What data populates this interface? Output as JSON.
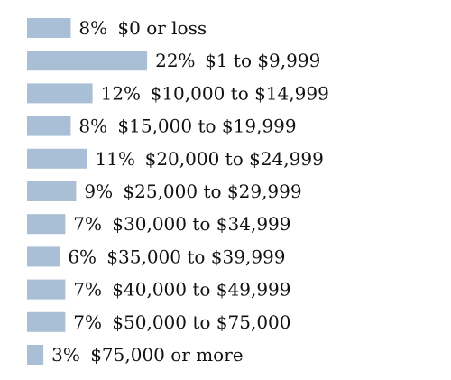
{
  "chart_data": {
    "type": "bar",
    "orientation": "horizontal",
    "bar_color": "#a8bfd6",
    "text_color": "#111111",
    "grid": false,
    "legend": "none",
    "xlim": [
      0,
      22
    ],
    "rows": [
      {
        "value": 8,
        "pct_label": "8%",
        "range_label": "$0 or loss"
      },
      {
        "value": 22,
        "pct_label": "22%",
        "range_label": "$1 to $9,999"
      },
      {
        "value": 12,
        "pct_label": "12%",
        "range_label": "$10,000 to $14,999"
      },
      {
        "value": 8,
        "pct_label": "8%",
        "range_label": "$15,000 to $19,999"
      },
      {
        "value": 11,
        "pct_label": "11%",
        "range_label": "$20,000 to $24,999"
      },
      {
        "value": 9,
        "pct_label": "9%",
        "range_label": "$25,000 to $29,999"
      },
      {
        "value": 7,
        "pct_label": "7%",
        "range_label": "$30,000 to $34,999"
      },
      {
        "value": 6,
        "pct_label": "6%",
        "range_label": "$35,000 to $39,999"
      },
      {
        "value": 7,
        "pct_label": "7%",
        "range_label": "$40,000 to $49,999"
      },
      {
        "value": 7,
        "pct_label": "7%",
        "range_label": "$50,000 to $75,000"
      },
      {
        "value": 3,
        "pct_label": "3%",
        "range_label": "$75,000 or more"
      }
    ]
  }
}
